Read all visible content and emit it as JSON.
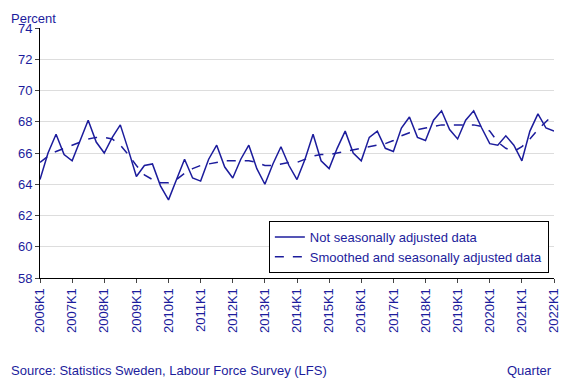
{
  "chart_data": {
    "type": "line",
    "y_label": "Percent",
    "x_label": "Quarter",
    "annotations": [
      "Source: Statistics Sweden, Labour Force Survey (LFS)"
    ],
    "categories": [
      "2006K1",
      null,
      null,
      null,
      "2007K1",
      null,
      null,
      null,
      "2008K1",
      null,
      null,
      null,
      "2009K1",
      null,
      null,
      null,
      "2010K1",
      null,
      null,
      null,
      "2011K1",
      null,
      null,
      null,
      "2012K1",
      null,
      null,
      null,
      "2013K1",
      null,
      null,
      null,
      "2014K1",
      null,
      null,
      null,
      "2015K1",
      null,
      null,
      null,
      "2016K1",
      null,
      null,
      null,
      "2017K1",
      null,
      null,
      null,
      "2018K1",
      null,
      null,
      null,
      "2019K1",
      null,
      null,
      null,
      "2020K1",
      null,
      null,
      null,
      "2021K1",
      null,
      null,
      null,
      "2022K1"
    ],
    "series": [
      {
        "name": "Not seasonally adjusted data",
        "color": "#1c1c9c",
        "line_style": "solid",
        "values": [
          64.3,
          66.0,
          67.2,
          65.9,
          65.5,
          66.8,
          68.1,
          66.7,
          66.0,
          67.0,
          67.8,
          66.2,
          64.5,
          65.2,
          65.3,
          63.9,
          63.0,
          64.3,
          65.6,
          64.4,
          64.2,
          65.6,
          66.5,
          65.1,
          64.4,
          65.6,
          66.5,
          65.0,
          64.0,
          65.3,
          66.4,
          65.2,
          64.3,
          65.6,
          67.2,
          65.5,
          65.0,
          66.3,
          67.4,
          66.0,
          65.5,
          67.0,
          67.4,
          66.3,
          66.1,
          67.6,
          68.3,
          67.0,
          66.8,
          68.1,
          68.7,
          67.5,
          66.9,
          68.1,
          68.7,
          67.6,
          66.6,
          66.5,
          67.1,
          66.5,
          65.5,
          67.4,
          68.5,
          67.6,
          67.4
        ]
      },
      {
        "name": "Smoothed and seasonally adjusted data",
        "color": "#1c1c9c",
        "line_style": "dash",
        "values": [
          65.4,
          65.8,
          66.1,
          66.3,
          66.5,
          66.7,
          66.9,
          67.0,
          67.0,
          66.9,
          66.5,
          65.9,
          65.2,
          64.6,
          64.3,
          64.1,
          64.1,
          64.3,
          64.7,
          65.0,
          65.2,
          65.3,
          65.4,
          65.5,
          65.5,
          65.5,
          65.5,
          65.4,
          65.2,
          65.2,
          65.3,
          65.4,
          65.4,
          65.6,
          65.8,
          65.9,
          65.9,
          66.0,
          66.1,
          66.2,
          66.3,
          66.4,
          66.5,
          66.6,
          66.8,
          67.1,
          67.3,
          67.5,
          67.6,
          67.7,
          67.8,
          67.8,
          67.8,
          67.8,
          67.8,
          67.7,
          67.4,
          66.7,
          66.3,
          66.1,
          66.4,
          66.9,
          67.5,
          68.0,
          68.5
        ]
      }
    ],
    "ylim": [
      58,
      74
    ],
    "yticks": [
      58,
      60,
      62,
      64,
      66,
      68,
      70,
      72,
      74
    ],
    "grid": true,
    "legend": "bottom right"
  }
}
